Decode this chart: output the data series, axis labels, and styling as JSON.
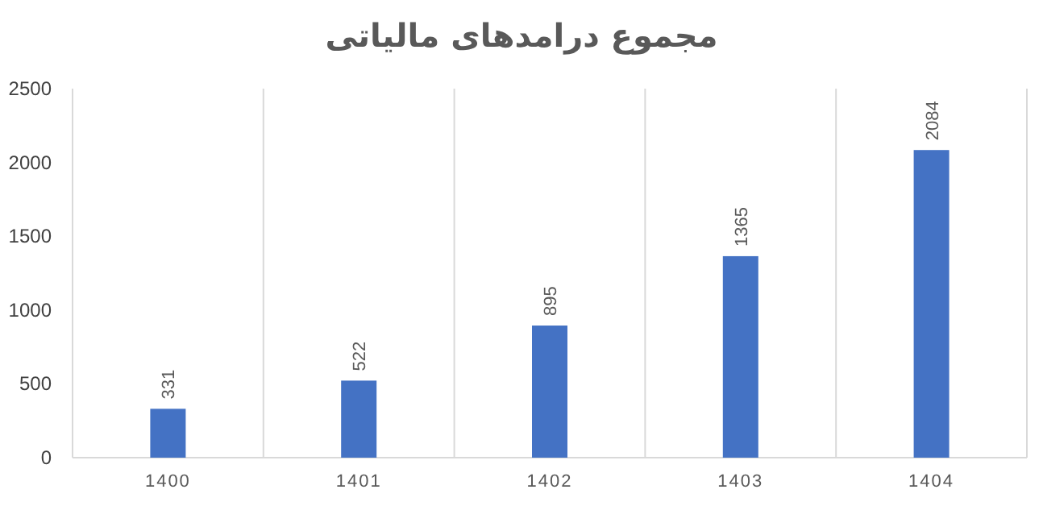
{
  "chart_data": {
    "type": "bar",
    "title": "مجموع درامدهای مالیاتی",
    "categories": [
      "1400",
      "1401",
      "1402",
      "1403",
      "1404"
    ],
    "values": [
      331,
      522,
      895,
      1365,
      2084
    ],
    "color": "#4472c4",
    "ylim": [
      0,
      2500
    ],
    "yticks": [
      0,
      500,
      1000,
      1500,
      2000,
      2500
    ],
    "grid": "x",
    "data_labels": true
  }
}
